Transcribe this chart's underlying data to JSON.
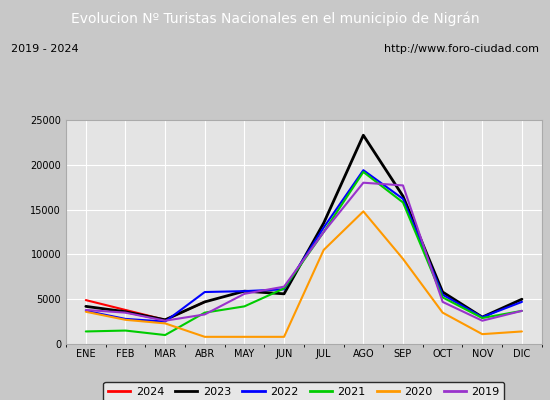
{
  "title": "Evolucion Nº Turistas Nacionales en el municipio de Nigrán",
  "subtitle_left": "2019 - 2024",
  "subtitle_right": "http://www.foro-ciudad.com",
  "title_bg_color": "#4c7abf",
  "title_fg_color": "#ffffff",
  "plot_bg_color": "#e8e8e8",
  "outer_bg_color": "#dcdcdc",
  "months": [
    "ENE",
    "FEB",
    "MAR",
    "ABR",
    "MAY",
    "JUN",
    "JUL",
    "AGO",
    "SEP",
    "OCT",
    "NOV",
    "DIC"
  ],
  "ylim": [
    0,
    25000
  ],
  "yticks": [
    0,
    5000,
    10000,
    15000,
    20000,
    25000
  ],
  "series": {
    "2024": {
      "color": "#ff0000",
      "linewidth": 1.5,
      "data": [
        4900,
        3800,
        2700,
        4700,
        null,
        null,
        null,
        null,
        null,
        null,
        null,
        null
      ]
    },
    "2023": {
      "color": "#000000",
      "linewidth": 2.0,
      "data": [
        4200,
        3600,
        2700,
        4700,
        5900,
        5600,
        13500,
        23300,
        16500,
        5800,
        3000,
        5000
      ]
    },
    "2022": {
      "color": "#0000ff",
      "linewidth": 1.5,
      "data": [
        3700,
        2800,
        2500,
        5800,
        5900,
        6100,
        13000,
        19400,
        16200,
        5500,
        3000,
        4700
      ]
    },
    "2021": {
      "color": "#00cc00",
      "linewidth": 1.5,
      "data": [
        1400,
        1500,
        1000,
        3500,
        4200,
        6200,
        12500,
        19200,
        15800,
        5200,
        2900,
        3700
      ]
    },
    "2020": {
      "color": "#ff9900",
      "linewidth": 1.5,
      "data": [
        3600,
        2700,
        2300,
        800,
        800,
        800,
        10500,
        14800,
        9500,
        3500,
        1100,
        1400
      ]
    },
    "2019": {
      "color": "#9933cc",
      "linewidth": 1.5,
      "data": [
        3800,
        3500,
        2600,
        3300,
        5600,
        6400,
        12500,
        18000,
        17700,
        4700,
        2600,
        3700
      ]
    }
  },
  "legend_order": [
    "2024",
    "2023",
    "2022",
    "2021",
    "2020",
    "2019"
  ]
}
